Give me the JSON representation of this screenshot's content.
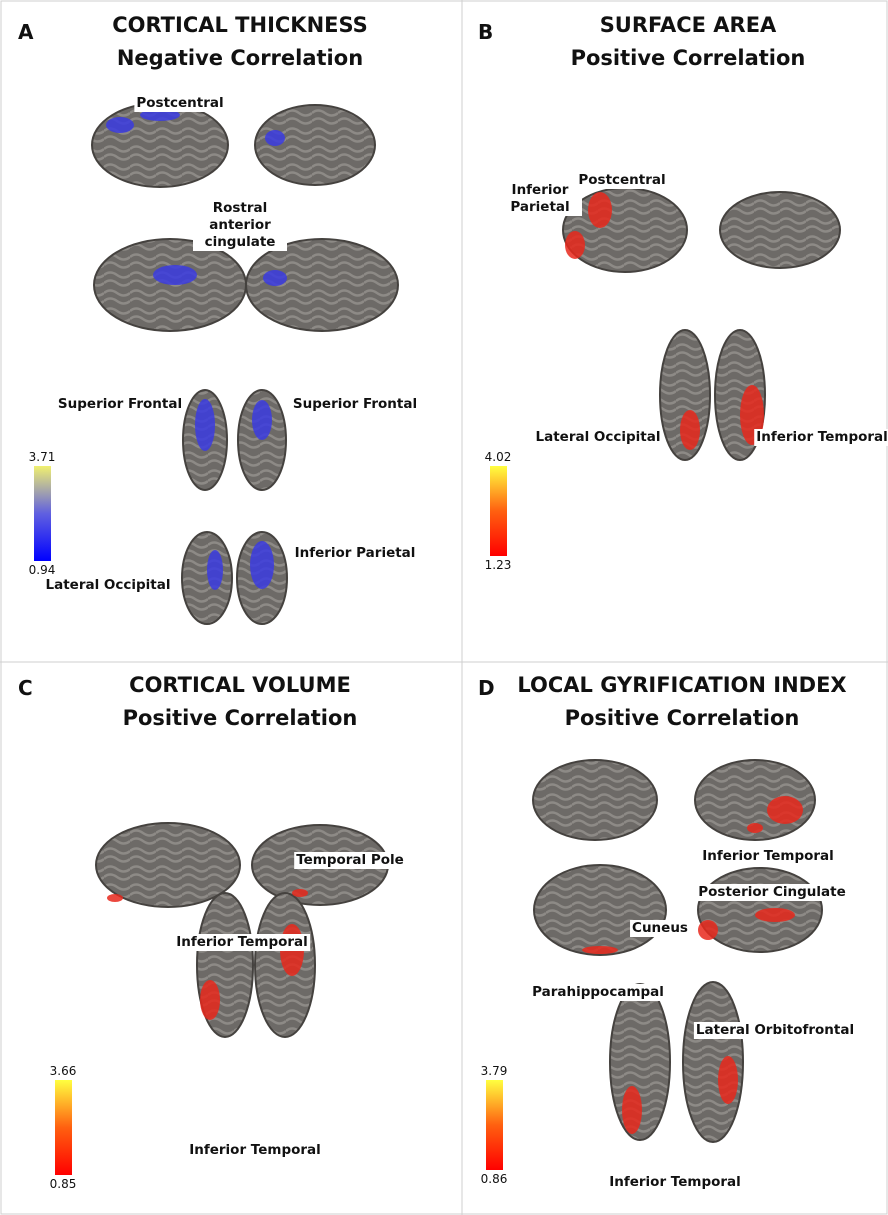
{
  "panels": [
    {
      "letter": "A",
      "title": [
        "CORTICAL THICKNESS",
        "Negative Correlation"
      ],
      "labels": [
        "Postcentral",
        "Rostral anterior cingulate",
        "Superior Frontal",
        "Superior Frontal",
        "Inferior Parietal",
        "Lateral Occipital"
      ],
      "colorbar": {
        "max": "3.71",
        "min": "0.94"
      }
    },
    {
      "letter": "B",
      "title": [
        "SURFACE AREA",
        "Positive Correlation"
      ],
      "labels": [
        "Inferior Parietal",
        "Postcentral",
        "Lateral Occipital",
        "Inferior Temporal"
      ],
      "colorbar": {
        "max": "4.02",
        "min": "1.23"
      }
    },
    {
      "letter": "C",
      "title": [
        "CORTICAL VOLUME",
        "Positive Correlation"
      ],
      "labels": [
        "Inferior Temporal",
        "Temporal Pole",
        "Inferior Temporal"
      ],
      "colorbar": {
        "max": "3.66",
        "min": "0.85"
      }
    },
    {
      "letter": "D",
      "title": [
        "LOCAL GYRIFICATION INDEX",
        "Positive Correlation"
      ],
      "labels": [
        "Inferior Temporal",
        "Posterior Cingulate",
        "Cuneus",
        "Parahippocampal",
        "Lateral Orbitofrontal",
        "Inferior Temporal"
      ],
      "colorbar": {
        "max": "3.79",
        "min": "0.86"
      }
    }
  ]
}
